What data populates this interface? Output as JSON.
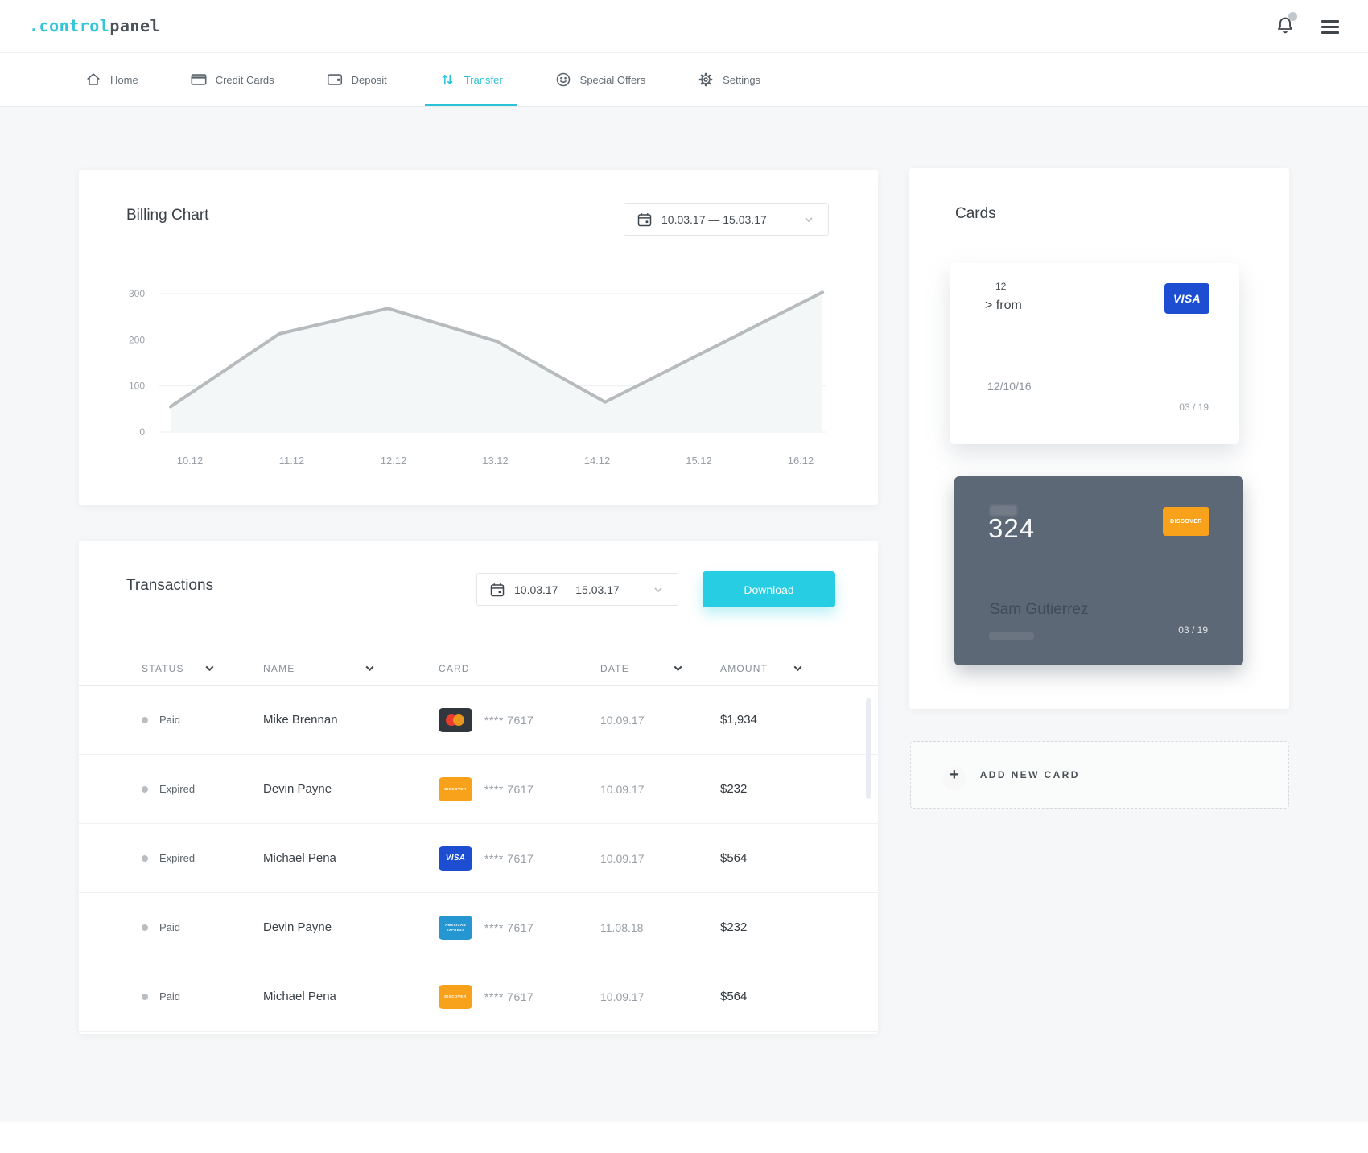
{
  "header": {
    "logo_accent": ".control",
    "logo_rest": "panel",
    "icons": {
      "bell": "bell-icon",
      "menu": "hamburger-icon"
    }
  },
  "nav": {
    "active": "Transfer",
    "items": [
      {
        "label": "Home",
        "icon": "home-icon"
      },
      {
        "label": "Credit Cards",
        "icon": "credit-card-icon"
      },
      {
        "label": "Deposit",
        "icon": "wallet-icon"
      },
      {
        "label": "Transfer",
        "icon": "transfer-arrows-icon"
      },
      {
        "label": "Special Offers",
        "icon": "smiley-icon"
      },
      {
        "label": "Settings",
        "icon": "gear-icon"
      }
    ]
  },
  "billing": {
    "title": "Billing Chart",
    "date_range": "10.03.17 — 15.03.17"
  },
  "chart_data": {
    "type": "line",
    "title": "Billing Chart",
    "x_labels": [
      "10.12",
      "11.12",
      "12.12",
      "13.12",
      "14.12",
      "15.12",
      "16.12"
    ],
    "values": [
      55,
      213,
      268,
      197,
      65,
      184,
      303
    ],
    "yticks": [
      0,
      100,
      200,
      300
    ],
    "ylim": [
      0,
      330
    ],
    "grid": true,
    "legend": false,
    "line_color": "#b7bbbe",
    "fill_color": "#f4f7f8"
  },
  "transactions": {
    "title": "Transactions",
    "date_range": "10.03.17 — 15.03.17",
    "download_label": "Download",
    "columns": [
      {
        "label": "STATUS",
        "sortable": true
      },
      {
        "label": "NAME",
        "sortable": true
      },
      {
        "label": "CARD",
        "sortable": false
      },
      {
        "label": "DATE",
        "sortable": true
      },
      {
        "label": "AMOUNT",
        "sortable": true
      }
    ],
    "rows": [
      {
        "status": "Paid",
        "name": "Mike Brennan",
        "card_brand": "mastercard",
        "card_label": "",
        "card_number": "**** 7617",
        "date": "10.09.17",
        "amount": "$1,934"
      },
      {
        "status": "Expired",
        "name": "Devin Payne",
        "card_brand": "discover",
        "card_label": "DISCOVER",
        "card_number": "**** 7617",
        "date": "10.09.17",
        "amount": "$232"
      },
      {
        "status": "Expired",
        "name": "Michael Pena",
        "card_brand": "visa",
        "card_label": "VISA",
        "card_number": "**** 7617",
        "date": "10.09.17",
        "amount": "$564"
      },
      {
        "status": "Paid",
        "name": "Devin Payne",
        "card_brand": "amex",
        "card_label": "AMERICAN EXPRESS",
        "card_number": "**** 7617",
        "date": "11.08.18",
        "amount": "$232"
      },
      {
        "status": "Paid",
        "name": "Michael Pena",
        "card_brand": "discover",
        "card_label": "DISCOVER",
        "card_number": "**** 7617",
        "date": "10.09.17",
        "amount": "$564"
      }
    ]
  },
  "cards": {
    "title": "Cards",
    "light_card": {
      "corner_label": "12",
      "from_label": "> from",
      "brand": "VISA",
      "issued": "12/10/16",
      "expiry": "03 / 19"
    },
    "dark_card": {
      "number": "324",
      "brand": "DISCOVER",
      "holder": "Sam Gutierrez",
      "expiry": "03 / 19"
    },
    "add_new_label": "ADD NEW CARD",
    "add_new_icon": "plus-icon"
  },
  "colors": {
    "accent": "#2bc3d7",
    "download_button": "#27cde2",
    "visa_blue": "#1d4ed2",
    "amex_blue": "#2596d1",
    "discover_orange": "#f7a21a",
    "mastercard_red": "#eb3b2d",
    "mastercard_orange": "#f79e1b",
    "dark_card_bg": "#5d6876",
    "chart_line": "#b7bbbe",
    "chart_fill": "#f4f7f8",
    "page_bg": "#f6f7f8"
  }
}
